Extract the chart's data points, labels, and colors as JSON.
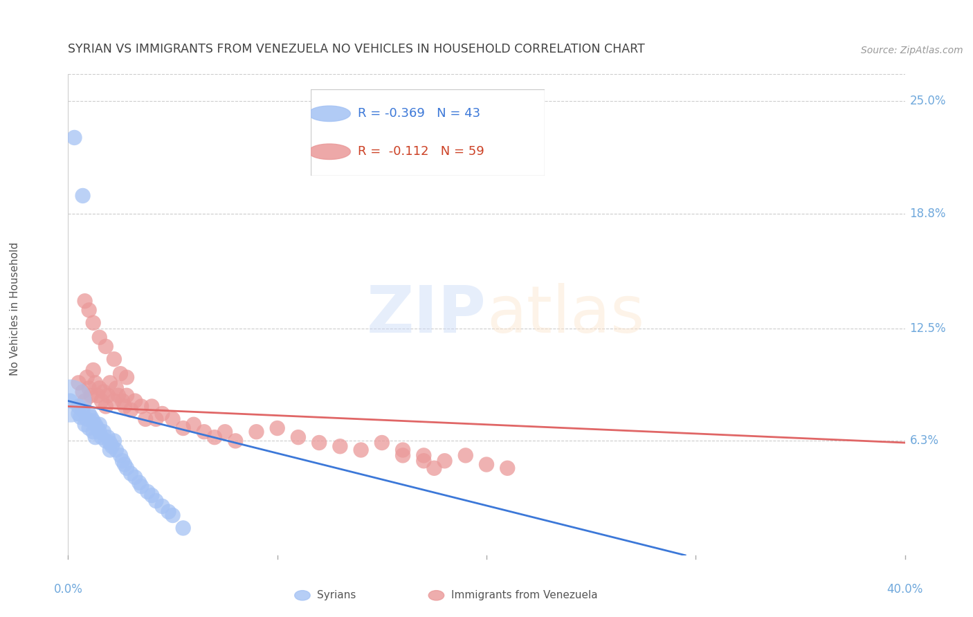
{
  "title": "SYRIAN VS IMMIGRANTS FROM VENEZUELA NO VEHICLES IN HOUSEHOLD CORRELATION CHART",
  "source": "Source: ZipAtlas.com",
  "ylabel": "No Vehicles in Household",
  "watermark": "ZIPatlas",
  "ytick_labels": [
    "25.0%",
    "18.8%",
    "12.5%",
    "6.3%"
  ],
  "ytick_values": [
    0.25,
    0.188,
    0.125,
    0.063
  ],
  "xmin": 0.0,
  "xmax": 0.4,
  "ymin": 0.0,
  "ymax": 0.265,
  "legend_blue_R": "-0.369",
  "legend_blue_N": "43",
  "legend_pink_R": "-0.112",
  "legend_pink_N": "59",
  "blue_color": "#a4c2f4",
  "pink_color": "#ea9999",
  "blue_line_color": "#3c78d8",
  "pink_line_color": "#e06666",
  "title_color": "#434343",
  "source_color": "#999999",
  "axis_label_color": "#6fa8dc",
  "grid_color": "#cccccc",
  "syrians_x": [
    0.003,
    0.007,
    0.005,
    0.005,
    0.006,
    0.007,
    0.008,
    0.009,
    0.01,
    0.01,
    0.011,
    0.012,
    0.012,
    0.013,
    0.013,
    0.014,
    0.015,
    0.015,
    0.016,
    0.017,
    0.018,
    0.019,
    0.02,
    0.02,
    0.021,
    0.022,
    0.023,
    0.025,
    0.026,
    0.027,
    0.028,
    0.03,
    0.032,
    0.034,
    0.035,
    0.038,
    0.04,
    0.042,
    0.045,
    0.048,
    0.05,
    0.055,
    0.001
  ],
  "syrians_y": [
    0.23,
    0.198,
    0.082,
    0.078,
    0.076,
    0.08,
    0.072,
    0.075,
    0.078,
    0.07,
    0.076,
    0.074,
    0.068,
    0.072,
    0.065,
    0.07,
    0.072,
    0.068,
    0.065,
    0.068,
    0.063,
    0.065,
    0.062,
    0.058,
    0.06,
    0.063,
    0.058,
    0.055,
    0.052,
    0.05,
    0.048,
    0.045,
    0.043,
    0.04,
    0.038,
    0.035,
    0.033,
    0.03,
    0.027,
    0.024,
    0.022,
    0.015,
    0.085
  ],
  "venezuela_x": [
    0.005,
    0.007,
    0.008,
    0.009,
    0.01,
    0.011,
    0.012,
    0.013,
    0.014,
    0.015,
    0.016,
    0.017,
    0.018,
    0.019,
    0.02,
    0.022,
    0.023,
    0.024,
    0.025,
    0.026,
    0.027,
    0.028,
    0.03,
    0.032,
    0.035,
    0.037,
    0.04,
    0.042,
    0.045,
    0.05,
    0.055,
    0.06,
    0.065,
    0.07,
    0.075,
    0.08,
    0.09,
    0.1,
    0.11,
    0.12,
    0.13,
    0.14,
    0.15,
    0.16,
    0.17,
    0.18,
    0.19,
    0.2,
    0.21,
    0.16,
    0.17,
    0.175,
    0.008,
    0.01,
    0.012,
    0.015,
    0.018,
    0.022,
    0.028
  ],
  "venezuela_y": [
    0.095,
    0.09,
    0.085,
    0.098,
    0.092,
    0.088,
    0.102,
    0.095,
    0.088,
    0.092,
    0.085,
    0.09,
    0.082,
    0.088,
    0.095,
    0.085,
    0.092,
    0.088,
    0.1,
    0.085,
    0.082,
    0.088,
    0.08,
    0.085,
    0.082,
    0.075,
    0.082,
    0.075,
    0.078,
    0.075,
    0.07,
    0.072,
    0.068,
    0.065,
    0.068,
    0.063,
    0.068,
    0.07,
    0.065,
    0.062,
    0.06,
    0.058,
    0.062,
    0.058,
    0.055,
    0.052,
    0.055,
    0.05,
    0.048,
    0.055,
    0.052,
    0.048,
    0.14,
    0.135,
    0.128,
    0.12,
    0.115,
    0.108,
    0.098
  ],
  "big_blue_x": [
    0.001
  ],
  "big_blue_y": [
    0.085
  ],
  "big_blue_size": 2000,
  "blue_line_x0": 0.0,
  "blue_line_x1": 0.295,
  "blue_line_y0": 0.085,
  "blue_line_y1": 0.0,
  "pink_line_x0": 0.0,
  "pink_line_x1": 0.4,
  "pink_line_y0": 0.082,
  "pink_line_y1": 0.062
}
